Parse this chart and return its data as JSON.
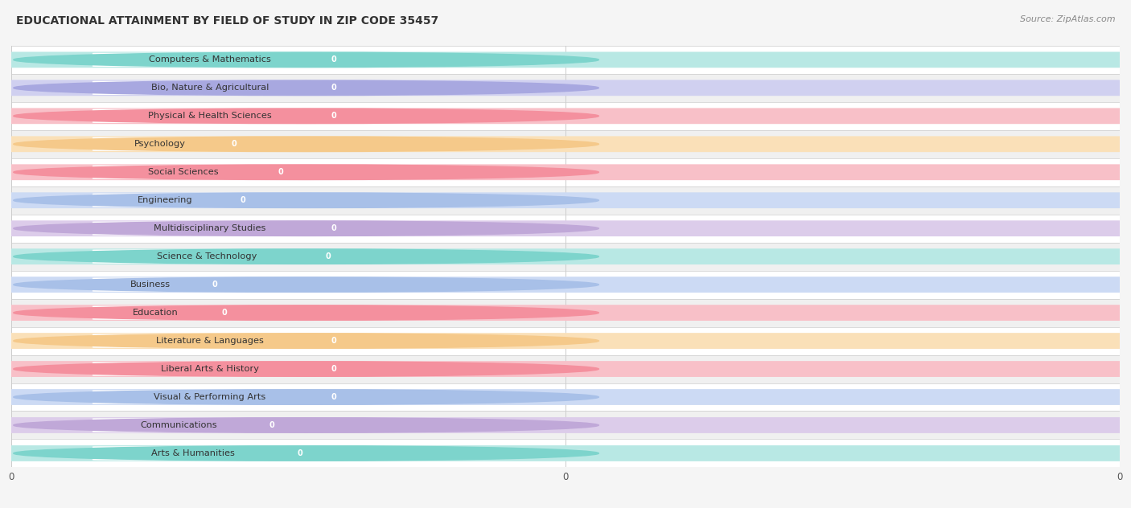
{
  "title": "EDUCATIONAL ATTAINMENT BY FIELD OF STUDY IN ZIP CODE 35457",
  "source": "Source: ZipAtlas.com",
  "categories": [
    "Computers & Mathematics",
    "Bio, Nature & Agricultural",
    "Physical & Health Sciences",
    "Psychology",
    "Social Sciences",
    "Engineering",
    "Multidisciplinary Studies",
    "Science & Technology",
    "Business",
    "Education",
    "Literature & Languages",
    "Liberal Arts & History",
    "Visual & Performing Arts",
    "Communications",
    "Arts & Humanities"
  ],
  "values": [
    0,
    0,
    0,
    0,
    0,
    0,
    0,
    0,
    0,
    0,
    0,
    0,
    0,
    0,
    0
  ],
  "bar_colors": [
    "#7dd4cc",
    "#a8a8e0",
    "#f4909e",
    "#f5c98a",
    "#f4909e",
    "#a8c0e8",
    "#c0a8d8",
    "#7dd4cc",
    "#a8c0e8",
    "#f4909e",
    "#f5c98a",
    "#f4909e",
    "#a8c0e8",
    "#c0a8d8",
    "#7dd4cc"
  ],
  "light_bar_colors": [
    "#b8e8e4",
    "#d0d0f0",
    "#f8c0c8",
    "#fae0b8",
    "#f8c0c8",
    "#ccdaf4",
    "#dcccea",
    "#b8e8e4",
    "#ccdaf4",
    "#f8c0c8",
    "#fae0b8",
    "#f8c0c8",
    "#ccdaf4",
    "#dcccea",
    "#b8e8e4"
  ],
  "row_colors": [
    "#ffffff",
    "#f0f0f0"
  ],
  "background_color": "#f5f5f5",
  "title_fontsize": 10,
  "label_fontsize": 9,
  "xticks": [
    0,
    0.5,
    1.0
  ],
  "xtick_labels": [
    "0",
    "0",
    "0"
  ]
}
